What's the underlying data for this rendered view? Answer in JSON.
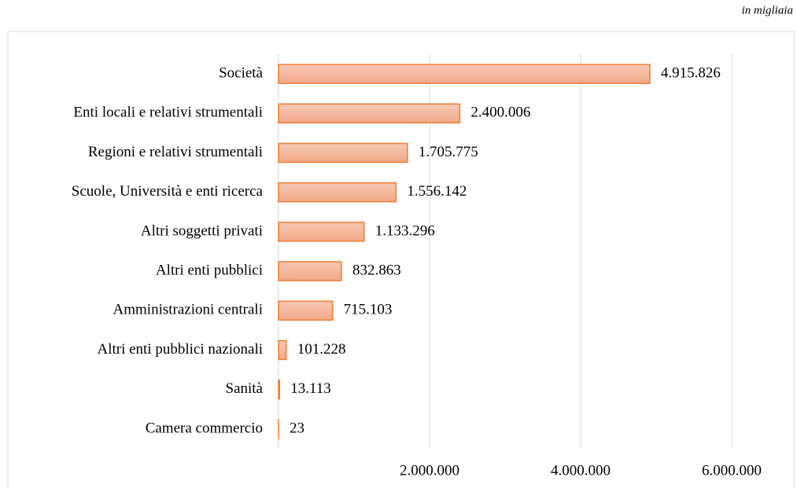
{
  "chart_data": {
    "type": "bar",
    "orientation": "horizontal",
    "subtitle": "in migliaia",
    "categories": [
      "Società",
      "Enti locali e relativi strumentali",
      "Regioni e relativi strumentali",
      "Scuole, Università e enti ricerca",
      "Altri soggetti privati",
      "Altri enti pubblici",
      "Amministrazioni centrali",
      "Altri enti pubblici nazionali",
      "Sanità",
      "Camera commercio"
    ],
    "values": [
      4915826,
      2400006,
      1705775,
      1556142,
      1133296,
      832863,
      715103,
      101228,
      13113,
      23
    ],
    "value_labels": [
      "4.915.826",
      "2.400.006",
      "1.705.775",
      "1.556.142",
      "1.133.296",
      "832.863",
      "715.103",
      "101.228",
      "13.113",
      "23"
    ],
    "color": "#f4b69c",
    "edge_color": "#ed7d31",
    "xlim": [
      0,
      6000000
    ],
    "xticks": [
      {
        "value": 2000000,
        "label": "2.000.000"
      },
      {
        "value": 4000000,
        "label": "4.000.000"
      },
      {
        "value": 6000000,
        "label": "6.000.000"
      }
    ],
    "grid": true
  }
}
